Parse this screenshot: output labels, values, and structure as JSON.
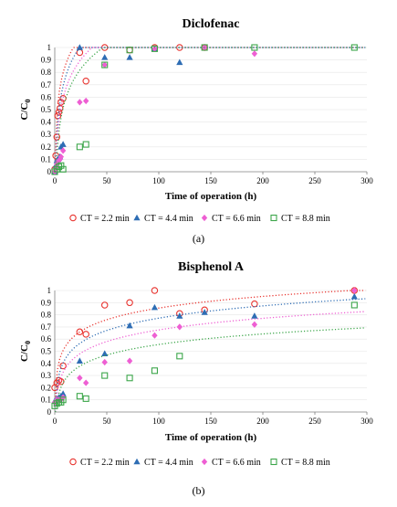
{
  "figure": {
    "panel_a": "(a)",
    "panel_b": "(b)"
  },
  "chart_data": [
    {
      "type": "scatter",
      "title": "Diclofenac",
      "xlabel": "Time of operation (h)",
      "ylabel": "C/C",
      "ylabel_subscript": "0",
      "xlim": [
        0,
        300
      ],
      "ylim": [
        0,
        1
      ],
      "x_ticks": [
        0,
        50,
        100,
        150,
        200,
        250,
        300
      ],
      "y_ticks": [
        0,
        0.1,
        0.2,
        0.3,
        0.4,
        0.5,
        0.6,
        0.7,
        0.8,
        0.9,
        1
      ],
      "y_tick_labels": [
        "0",
        "0.1",
        "0.2",
        "0.3",
        "0.4",
        "0.5",
        "0.6",
        "0.7",
        "0.8",
        "0.9",
        "1"
      ],
      "grid": "horizontal",
      "legend_position": "bottom",
      "series": [
        {
          "name": "CT = 2.2 min",
          "marker": "circle-open",
          "color": "#e8332e",
          "x": [
            0,
            1,
            2,
            3,
            4,
            5,
            6,
            8,
            24,
            30,
            48,
            72,
            96,
            120,
            144
          ],
          "y": [
            0.02,
            0.13,
            0.28,
            0.45,
            0.48,
            0.51,
            0.56,
            0.59,
            0.96,
            0.73,
            1.0,
            0.98,
            1.0,
            1.0,
            1.0
          ],
          "fit": {
            "a": 0.27,
            "b": 0.253
          }
        },
        {
          "name": "CT = 4.4 min",
          "marker": "triangle",
          "color": "#2e6db4",
          "x": [
            0,
            1,
            2,
            3,
            4,
            5,
            6,
            8,
            24,
            48,
            72,
            96,
            120
          ],
          "y": [
            0.0,
            0.05,
            0.09,
            0.1,
            0.11,
            0.12,
            0.2,
            0.22,
            1.0,
            0.92,
            0.92,
            0.99,
            0.88
          ],
          "fit": {
            "a": 0.1,
            "b": 0.284
          }
        },
        {
          "name": "CT = 6.6 min",
          "marker": "diamond",
          "color": "#ee5fd3",
          "x": [
            0,
            1,
            2,
            3,
            4,
            5,
            6,
            8,
            24,
            30,
            48,
            96,
            144,
            192
          ],
          "y": [
            0.0,
            0.03,
            0.06,
            0.08,
            0.09,
            0.1,
            0.12,
            0.17,
            0.56,
            0.57,
            0.86,
            0.99,
            1.0,
            0.95
          ],
          "fit": {
            "a": 0.03,
            "b": 0.271
          }
        },
        {
          "name": "CT = 8.8 min",
          "marker": "square-open",
          "color": "#3ca64a",
          "x": [
            0,
            2,
            4,
            6,
            8,
            24,
            30,
            48,
            72,
            96,
            144,
            192,
            288
          ],
          "y": [
            0.0,
            0.02,
            0.04,
            0.05,
            0.02,
            0.2,
            0.22,
            0.86,
            0.98,
            0.99,
            1.0,
            1.0,
            1.0
          ],
          "fit": {
            "a": -0.06,
            "b": 0.276
          }
        }
      ]
    },
    {
      "type": "scatter",
      "title": "Bisphenol A",
      "xlabel": "Time of operation (h)",
      "ylabel": "C/C",
      "ylabel_subscript": "0",
      "xlim": [
        0,
        300
      ],
      "ylim": [
        0,
        1
      ],
      "x_ticks": [
        0,
        50,
        100,
        150,
        200,
        250,
        300
      ],
      "y_ticks": [
        0,
        0.1,
        0.2,
        0.3,
        0.4,
        0.5,
        0.6,
        0.7,
        0.8,
        0.9,
        1
      ],
      "y_tick_labels": [
        "0",
        "0.1",
        "0.2",
        "0.3",
        "0.4",
        "0.5",
        "0.6",
        "0.7",
        "0.8",
        "0.9",
        "1"
      ],
      "grid": "horizontal",
      "legend_position": "bottom",
      "series": [
        {
          "name": "CT = 2.2 min",
          "marker": "circle-open",
          "color": "#e8332e",
          "x": [
            0,
            2,
            4,
            6,
            8,
            24,
            30,
            48,
            72,
            96,
            120,
            144,
            192,
            288
          ],
          "y": [
            0.2,
            0.24,
            0.26,
            0.25,
            0.38,
            0.66,
            0.64,
            0.88,
            0.9,
            1.0,
            0.81,
            0.84,
            0.89,
            1.0
          ],
          "fit": {
            "a": 0.22,
            "b": 0.138
          }
        },
        {
          "name": "CT = 4.4 min",
          "marker": "triangle",
          "color": "#2e6db4",
          "x": [
            0,
            2,
            4,
            6,
            8,
            24,
            48,
            72,
            96,
            120,
            144,
            192,
            288
          ],
          "y": [
            0.09,
            0.11,
            0.12,
            0.13,
            0.15,
            0.42,
            0.48,
            0.71,
            0.86,
            0.79,
            0.82,
            0.79,
            0.95
          ],
          "fit": {
            "a": 0.1,
            "b": 0.146
          }
        },
        {
          "name": "CT = 6.6 min",
          "marker": "diamond",
          "color": "#ee5fd3",
          "x": [
            0,
            2,
            4,
            6,
            8,
            24,
            30,
            48,
            72,
            96,
            120,
            192,
            288
          ],
          "y": [
            0.08,
            0.1,
            0.1,
            0.1,
            0.12,
            0.28,
            0.24,
            0.41,
            0.42,
            0.63,
            0.7,
            0.72,
            1.0
          ],
          "fit": {
            "a": 0.04,
            "b": 0.138
          }
        },
        {
          "name": "CT = 8.8 min",
          "marker": "square-open",
          "color": "#3ca64a",
          "x": [
            0,
            2,
            4,
            6,
            8,
            24,
            30,
            48,
            72,
            96,
            120,
            288
          ],
          "y": [
            0.05,
            0.07,
            0.08,
            0.08,
            0.1,
            0.13,
            0.11,
            0.3,
            0.28,
            0.34,
            0.46,
            0.88
          ],
          "fit": {
            "a": -0.02,
            "b": 0.125
          }
        }
      ]
    }
  ]
}
